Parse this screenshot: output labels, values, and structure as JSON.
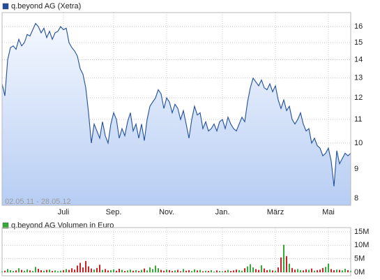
{
  "chart_data": [
    {
      "type": "line",
      "log_scale": true,
      "grid": true,
      "annotation": "02.05.11 - 28.05.12",
      "series": [
        {
          "name": "q.beyond AG (Xetra)",
          "color": "#1f4e9c",
          "values": [
            12.7,
            12.1,
            14.0,
            14.7,
            14.8,
            14.6,
            15.2,
            14.8,
            15.0,
            15.5,
            15.4,
            15.8,
            16.2,
            16.0,
            15.6,
            15.9,
            15.3,
            15.7,
            15.2,
            15.6,
            15.7,
            16.0,
            15.8,
            15.9,
            15.0,
            14.7,
            14.5,
            14.2,
            13.5,
            13.2,
            12.5,
            11.3,
            10.0,
            10.8,
            10.5,
            10.2,
            10.9,
            10.3,
            10.0,
            10.8,
            11.3,
            11.0,
            10.2,
            10.6,
            10.3,
            10.9,
            11.3,
            10.5,
            10.8,
            10.2,
            10.8,
            10.1,
            11.0,
            11.6,
            11.8,
            12.0,
            12.4,
            12.2,
            11.5,
            12.0,
            11.8,
            11.3,
            11.7,
            11.5,
            11.0,
            11.4,
            10.8,
            10.2,
            11.0,
            11.6,
            11.2,
            11.3,
            10.6,
            10.9,
            10.5,
            10.6,
            10.8,
            10.5,
            10.9,
            11.0,
            10.6,
            11.1,
            10.8,
            10.6,
            10.5,
            10.8,
            11.1,
            10.9,
            11.8,
            12.5,
            13.0,
            12.8,
            12.6,
            12.9,
            12.5,
            12.4,
            12.7,
            12.3,
            12.6,
            11.9,
            11.5,
            11.9,
            11.4,
            11.6,
            11.0,
            10.8,
            11.0,
            11.3,
            10.8,
            10.5,
            10.6,
            10.0,
            10.2,
            9.9,
            9.8,
            9.5,
            9.6,
            9.8,
            9.3,
            8.4,
            9.7,
            9.2,
            9.4,
            9.6,
            9.5,
            9.6
          ]
        }
      ],
      "ylim": [
        7.78,
        16.93
      ],
      "yticks": [
        8,
        9,
        10,
        11,
        12,
        13,
        14,
        15,
        16
      ],
      "xlim": [
        0,
        125
      ],
      "xticks": [
        {
          "value": 22,
          "label": "Juli"
        },
        {
          "value": 40,
          "label": "Sep."
        },
        {
          "value": 59,
          "label": "Nov."
        },
        {
          "value": 79,
          "label": "Jan."
        },
        {
          "value": 98,
          "label": "März"
        },
        {
          "value": 117,
          "label": "Mai"
        }
      ]
    },
    {
      "type": "bar",
      "grid": true,
      "up_color": "#33aa33",
      "down_color": "#cc2222",
      "series": [
        {
          "name": "q.beyond AG Volumen in Euro",
          "color": "#33aa33",
          "values": [
            0.4,
            0.6,
            1.2,
            0.8,
            0.5,
            0.7,
            1.5,
            0.9,
            0.6,
            1.1,
            0.7,
            0.5,
            2.0,
            1.3,
            0.8,
            0.6,
            0.9,
            1.0,
            0.5,
            0.7,
            0.4,
            0.6,
            0.8,
            1.2,
            0.9,
            1.5,
            1.0,
            2.5,
            3.5,
            1.8,
            4.2,
            2.2,
            1.4,
            1.0,
            1.6,
            2.8,
            0.9,
            1.2,
            0.7,
            0.8,
            1.1,
            0.6,
            1.3,
            0.9,
            0.5,
            0.7,
            1.0,
            0.6,
            0.8,
            0.5,
            0.9,
            1.4,
            0.7,
            1.8,
            1.2,
            2.5,
            1.5,
            0.9,
            0.6,
            1.0,
            0.8,
            0.5,
            0.7,
            0.9,
            0.4,
            1.2,
            0.6,
            0.8,
            0.5,
            1.1,
            0.7,
            0.9,
            0.4,
            0.6,
            0.5,
            0.8,
            0.3,
            0.7,
            0.5,
            0.4,
            0.6,
            0.9,
            0.5,
            0.7,
            1.0,
            0.8,
            0.6,
            1.5,
            2.2,
            3.0,
            1.8,
            1.2,
            0.9,
            2.6,
            1.4,
            0.8,
            1.0,
            0.7,
            0.6,
            1.8,
            5.5,
            10.2,
            6.0,
            3.2,
            1.6,
            1.0,
            1.2,
            0.8,
            0.7,
            1.1,
            0.9,
            1.4,
            0.6,
            0.8,
            1.0,
            1.6,
            2.0,
            3.2,
            1.2,
            0.8,
            1.0,
            0.9,
            0.7,
            1.3,
            0.8,
            0.6
          ]
        }
      ],
      "ylim": [
        0,
        15
      ],
      "yticks": [
        {
          "value": 0,
          "label": "0M"
        },
        {
          "value": 5,
          "label": "5M"
        },
        {
          "value": 10,
          "label": "10M"
        },
        {
          "value": 15,
          "label": "15M"
        }
      ]
    }
  ]
}
